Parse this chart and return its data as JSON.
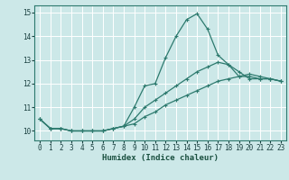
{
  "xlabel": "Humidex (Indice chaleur)",
  "ylabel": "",
  "bg_color": "#cce8e8",
  "grid_color": "#ffffff",
  "line_color": "#2d7a6e",
  "xmin": -0.5,
  "xmax": 23.5,
  "ymin": 9.6,
  "ymax": 15.3,
  "yticks": [
    10,
    11,
    12,
    13,
    14,
    15
  ],
  "xticks": [
    0,
    1,
    2,
    3,
    4,
    5,
    6,
    7,
    8,
    9,
    10,
    11,
    12,
    13,
    14,
    15,
    16,
    17,
    18,
    19,
    20,
    21,
    22,
    23
  ],
  "line1_x": [
    0,
    1,
    2,
    3,
    4,
    5,
    6,
    7,
    8,
    9,
    10,
    11,
    12,
    13,
    14,
    15,
    16,
    17,
    18,
    19,
    20,
    21,
    22,
    23
  ],
  "line1_y": [
    10.5,
    10.1,
    10.1,
    10.0,
    10.0,
    10.0,
    10.0,
    10.1,
    10.2,
    11.0,
    11.9,
    12.0,
    13.1,
    14.0,
    14.7,
    14.95,
    14.3,
    13.2,
    12.8,
    12.3,
    12.3,
    12.2,
    12.2,
    12.1
  ],
  "line2_x": [
    0,
    1,
    2,
    3,
    4,
    5,
    6,
    7,
    8,
    9,
    10,
    11,
    12,
    13,
    14,
    15,
    16,
    17,
    18,
    19,
    20,
    21,
    22,
    23
  ],
  "line2_y": [
    10.5,
    10.1,
    10.1,
    10.0,
    10.0,
    10.0,
    10.0,
    10.1,
    10.2,
    10.5,
    11.0,
    11.3,
    11.6,
    11.9,
    12.2,
    12.5,
    12.7,
    12.9,
    12.8,
    12.5,
    12.2,
    12.2,
    12.2,
    12.1
  ],
  "line3_x": [
    0,
    1,
    2,
    3,
    4,
    5,
    6,
    7,
    8,
    9,
    10,
    11,
    12,
    13,
    14,
    15,
    16,
    17,
    18,
    19,
    20,
    21,
    22,
    23
  ],
  "line3_y": [
    10.5,
    10.1,
    10.1,
    10.0,
    10.0,
    10.0,
    10.0,
    10.1,
    10.2,
    10.3,
    10.6,
    10.8,
    11.1,
    11.3,
    11.5,
    11.7,
    11.9,
    12.1,
    12.2,
    12.3,
    12.4,
    12.3,
    12.2,
    12.1
  ],
  "xlabel_fontsize": 6.5,
  "tick_fontsize": 5.5
}
